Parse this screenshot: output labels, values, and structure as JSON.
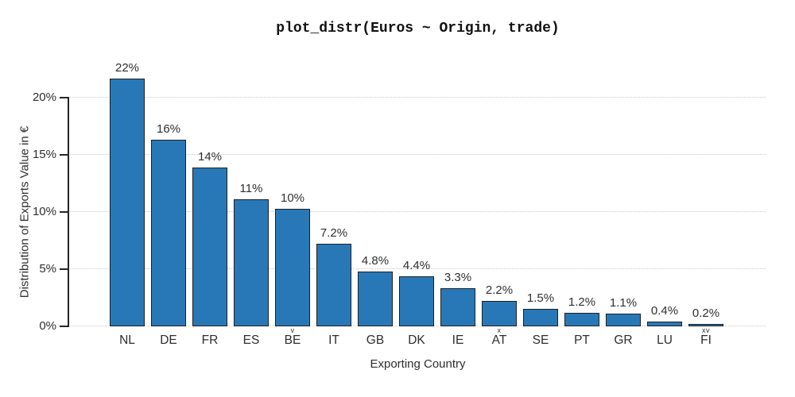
{
  "chart_data": {
    "type": "bar",
    "title": "plot_distr(Euros ~ Origin, trade)",
    "xlabel": "Exporting Country",
    "ylabel": "Distribution of Exports Value in €",
    "categories": [
      "NL",
      "DE",
      "FR",
      "ES",
      "BE",
      "IT",
      "GB",
      "DK",
      "IE",
      "AT",
      "SE",
      "PT",
      "GR",
      "LU",
      "FI"
    ],
    "values": [
      21.7,
      16.3,
      13.9,
      11.1,
      10.3,
      7.2,
      4.8,
      4.4,
      3.3,
      2.2,
      1.5,
      1.2,
      1.1,
      0.4,
      0.2
    ],
    "bar_labels": [
      "22%",
      "16%",
      "14%",
      "11%",
      "10%",
      "7.2%",
      "4.8%",
      "4.4%",
      "3.3%",
      "2.2%",
      "1.5%",
      "1.2%",
      "1.1%",
      "0.4%",
      "0.2%"
    ],
    "index_marks": [
      {
        "category_index": 4,
        "label": "v"
      },
      {
        "category_index": 9,
        "label": "x"
      },
      {
        "category_index": 14,
        "label": "xv"
      }
    ],
    "y_ticks": [
      {
        "value": 0,
        "label": "0%"
      },
      {
        "value": 5,
        "label": "5%"
      },
      {
        "value": 10,
        "label": "10%"
      },
      {
        "value": 15,
        "label": "15%"
      },
      {
        "value": 20,
        "label": "20%"
      }
    ],
    "ylim": [
      0,
      22
    ],
    "grid": "horizontal dotted",
    "legend": "none",
    "bar_color": "#2878b8",
    "bar_border_color": "#1f1f1f",
    "axis_color": "#262626",
    "grid_color": "#c9c9c9"
  }
}
